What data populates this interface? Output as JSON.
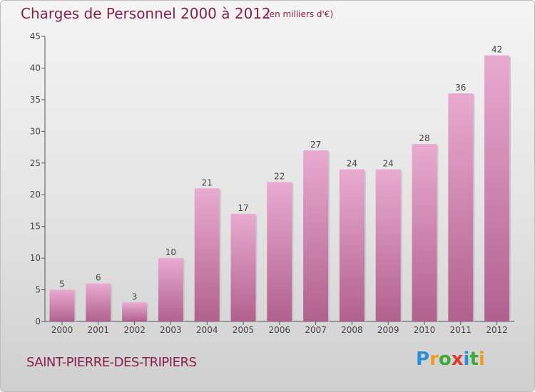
{
  "title": "Charges de Personnel 2000 à 2012",
  "subtitle": "(en milliers d'€)",
  "commune": "SAINT-PIERRE-DES-TRIPIERS",
  "logo": {
    "letters": [
      "P",
      "r",
      "o",
      "x",
      "i",
      "t",
      "i"
    ],
    "colors": [
      "#2e8fd4",
      "#f39a1e",
      "#3aa83a",
      "#e03a2f",
      "#2e8fd4",
      "#3aa83a",
      "#f39a1e"
    ]
  },
  "colors": {
    "bar_top": "#e9aad0",
    "bar_bottom": "#b0618d",
    "title": "#8a1f4c"
  },
  "chart_data": {
    "type": "bar",
    "categories": [
      "2000",
      "2001",
      "2002",
      "2003",
      "2004",
      "2005",
      "2006",
      "2007",
      "2008",
      "2009",
      "2010",
      "2011",
      "2012"
    ],
    "values": [
      5,
      6,
      3,
      10,
      21,
      17,
      22,
      27,
      24,
      24,
      28,
      36,
      42
    ],
    "data_labels": [
      "5",
      "6",
      "3",
      "10",
      "21",
      "17",
      "22",
      "27",
      "24",
      "24",
      "28",
      "36",
      "42"
    ],
    "ylim": [
      0,
      45
    ],
    "yticks": [
      0,
      5,
      10,
      15,
      20,
      25,
      30,
      35,
      40,
      45
    ],
    "ytick_labels": [
      "0",
      "5",
      "10",
      "15",
      "20",
      "25",
      "30",
      "35",
      "40",
      "45"
    ],
    "grid": false,
    "legend": "none"
  }
}
